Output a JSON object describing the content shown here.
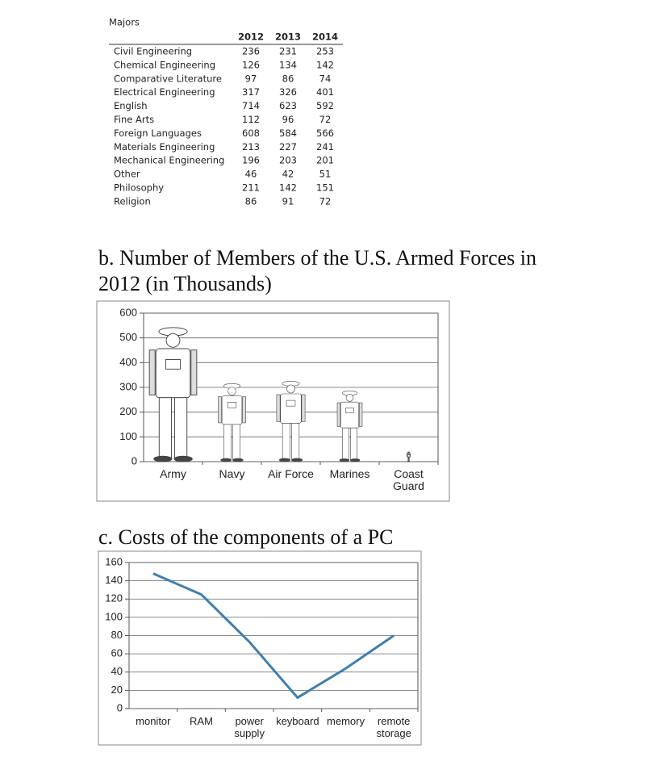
{
  "table": {
    "title": "Majors",
    "columns": [
      "2012",
      "2013",
      "2014"
    ],
    "rows": [
      [
        "Civil Engineering",
        236,
        231,
        253
      ],
      [
        "Chemical Engineering",
        126,
        134,
        142
      ],
      [
        "Comparative Literature",
        97,
        86,
        74
      ],
      [
        "Electrical Engineering",
        317,
        326,
        401
      ],
      [
        "English",
        714,
        623,
        592
      ],
      [
        "Fine Arts",
        112,
        96,
        72
      ],
      [
        "Foreign Languages",
        608,
        584,
        566
      ],
      [
        "Materials Engineering",
        213,
        227,
        241
      ],
      [
        "Mechanical Engineering",
        196,
        203,
        201
      ],
      [
        "Other",
        46,
        42,
        51
      ],
      [
        "Philosophy",
        211,
        142,
        151
      ],
      [
        "Religion",
        86,
        91,
        72
      ]
    ]
  },
  "chart_data": [
    {
      "type": "pictograph",
      "title": "b. Number of Members of the U.S. Armed Forces in 2012 (in Thousands)",
      "categories": [
        "Army",
        "Navy",
        "Air Force",
        "Marines",
        "Coast Guard"
      ],
      "values": [
        550,
        320,
        330,
        290,
        40
      ],
      "color": "#444444",
      "ylim": [
        0,
        600
      ],
      "yticks": [
        0,
        100,
        200,
        300,
        400,
        500,
        600
      ],
      "grid": true
    },
    {
      "type": "line",
      "title": "c. Costs of the components of a PC",
      "categories": [
        "monitor",
        "RAM",
        "power supply",
        "keyboard",
        "memory",
        "remote storage"
      ],
      "values": [
        148,
        125,
        73,
        12,
        44,
        80
      ],
      "color": "#3f7fae",
      "ylim": [
        0,
        160
      ],
      "yticks": [
        0,
        20,
        40,
        60,
        80,
        100,
        120,
        140,
        160
      ],
      "grid": true
    }
  ]
}
